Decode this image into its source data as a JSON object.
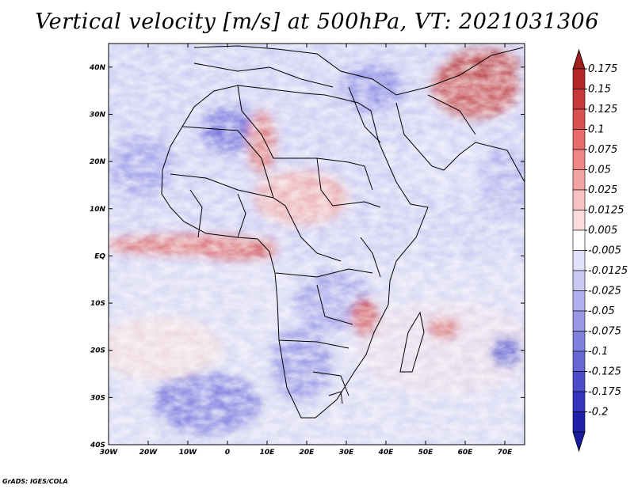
{
  "title": "Vertical velocity [m/s] at 500hPa, VT: 2021031306",
  "credit": "GrADS: IGES/COLA",
  "map": {
    "lat_labels": [
      "40N",
      "30N",
      "20N",
      "10N",
      "EQ",
      "10S",
      "20S",
      "30S",
      "40S"
    ],
    "lon_labels": [
      "30W",
      "20W",
      "10W",
      "0",
      "10E",
      "20E",
      "30E",
      "40E",
      "50E",
      "60E",
      "70E"
    ],
    "lon_range": [
      -30,
      75
    ],
    "lat_range": [
      -40,
      45
    ]
  },
  "colorbar": {
    "labels": [
      "0.175",
      "0.15",
      "0.125",
      "0.1",
      "0.075",
      "0.05",
      "0.025",
      "0.0125",
      "0.005",
      "-0.005",
      "-0.0125",
      "-0.025",
      "-0.05",
      "-0.075",
      "-0.1",
      "-0.125",
      "-0.175",
      "-0.2"
    ],
    "colors": [
      "#b52626",
      "#c83838",
      "#da4f4f",
      "#e86a6a",
      "#f08585",
      "#f4a3a3",
      "#f8c2c2",
      "#fbdcdc",
      "#ffffff",
      "#e1e1fa",
      "#c9c9f4",
      "#b0b0ee",
      "#9898e6",
      "#7f7fde",
      "#6666d4",
      "#4d4dca",
      "#3434bd",
      "#2020a8"
    ],
    "top_arrow_color": "#a01e1e",
    "bottom_arrow_color": "#1a1aa0"
  }
}
